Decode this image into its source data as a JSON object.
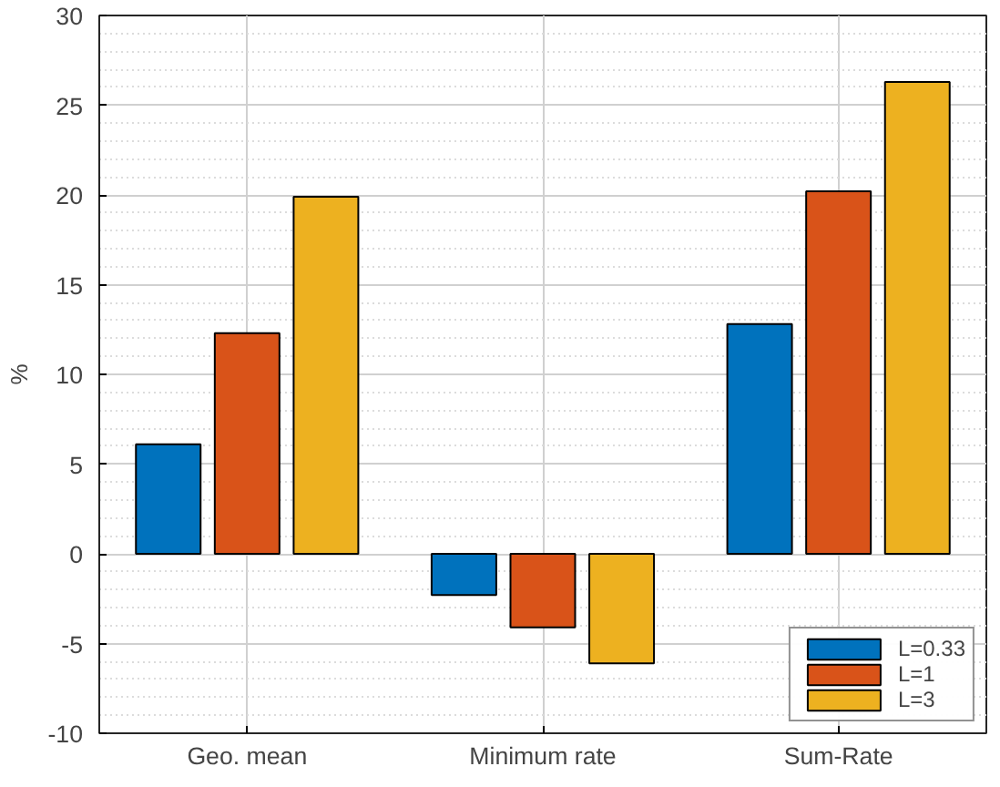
{
  "chart_data": {
    "type": "bar",
    "ylabel": "%",
    "categories": [
      "Geo. mean",
      "Minimum rate",
      "Sum-Rate"
    ],
    "series": [
      {
        "name": "L=0.33",
        "color": "#0072bd",
        "values": [
          6.1,
          -2.3,
          12.8
        ]
      },
      {
        "name": "L=1",
        "color": "#d95319",
        "values": [
          12.3,
          -4.1,
          20.2
        ]
      },
      {
        "name": "L=3",
        "color": "#edb120",
        "values": [
          19.9,
          -6.1,
          26.3
        ]
      }
    ],
    "ylim": [
      -10,
      30
    ],
    "yticks": [
      -10,
      -5,
      0,
      5,
      10,
      15,
      20,
      25,
      30
    ],
    "grid": true,
    "legend": "bottom right"
  }
}
